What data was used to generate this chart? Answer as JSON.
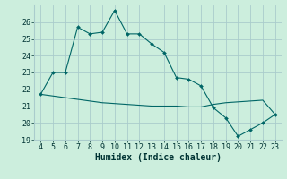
{
  "xlabel": "Humidex (Indice chaleur)",
  "x_upper": [
    4,
    5,
    6,
    7,
    8,
    9,
    10,
    11,
    12,
    13,
    14,
    15,
    16,
    17,
    18,
    19,
    20,
    21,
    22,
    23
  ],
  "y_upper": [
    21.7,
    23.0,
    23.0,
    25.7,
    25.3,
    25.4,
    26.7,
    25.3,
    25.3,
    24.7,
    24.2,
    22.7,
    22.6,
    22.2,
    20.9,
    20.3,
    19.2,
    19.6,
    20.0,
    20.5
  ],
  "x_lower": [
    4,
    5,
    6,
    7,
    8,
    9,
    10,
    11,
    12,
    13,
    14,
    15,
    16,
    17,
    18,
    19,
    20,
    21,
    22,
    23
  ],
  "y_lower": [
    21.7,
    21.6,
    21.5,
    21.4,
    21.3,
    21.2,
    21.15,
    21.1,
    21.05,
    21.0,
    21.0,
    21.0,
    20.95,
    20.95,
    21.1,
    21.2,
    21.25,
    21.3,
    21.35,
    20.5
  ],
  "line_color": "#006666",
  "marker_color": "#006666",
  "bg_color": "#cceedd",
  "grid_color": "#aacccc",
  "tick_label_color": "#003333",
  "ylim": [
    19,
    27
  ],
  "xlim": [
    3.5,
    23.5
  ],
  "yticks": [
    19,
    20,
    21,
    22,
    23,
    24,
    25,
    26
  ],
  "xticks": [
    4,
    5,
    6,
    7,
    8,
    9,
    10,
    11,
    12,
    13,
    14,
    15,
    16,
    17,
    18,
    19,
    20,
    21,
    22,
    23
  ],
  "font_size": 6,
  "xlabel_font_size": 7
}
